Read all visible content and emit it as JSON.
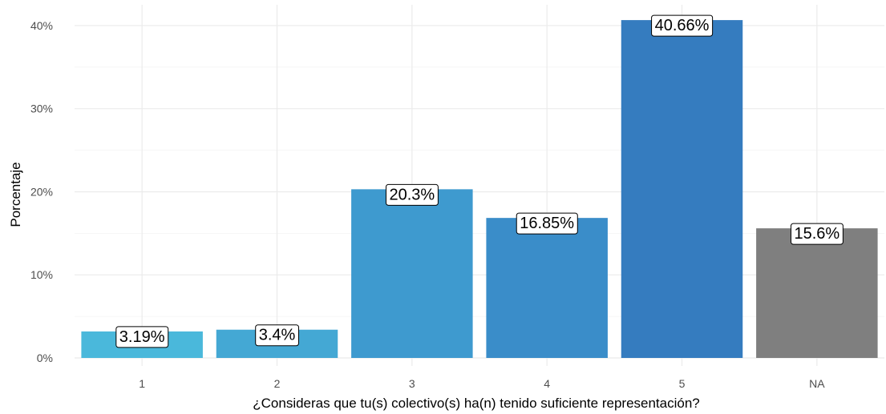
{
  "chart_data": {
    "type": "bar",
    "title": "",
    "xlabel": "¿Consideras que tu(s) colectivo(s) ha(n) tenido suficiente representación?",
    "ylabel": "Porcentaje",
    "categories": [
      "1",
      "2",
      "3",
      "4",
      "5",
      "NA"
    ],
    "values": [
      3.19,
      3.4,
      20.3,
      16.85,
      40.66,
      15.6
    ],
    "data_labels": [
      "3.19%",
      "3.4%",
      "20.3%",
      "16.85%",
      "40.66%",
      "15.6%"
    ],
    "bar_colors": [
      "#4ab8db",
      "#44a8d4",
      "#3e9acf",
      "#3a8dc9",
      "#357cbf",
      "#7f7f7f"
    ],
    "ylim": [
      0,
      42.5
    ],
    "yticks": [
      0,
      10,
      20,
      30,
      40
    ],
    "ytick_labels": [
      "0%",
      "10%",
      "20%",
      "30%",
      "40%"
    ],
    "grid": true,
    "legend": "none"
  }
}
